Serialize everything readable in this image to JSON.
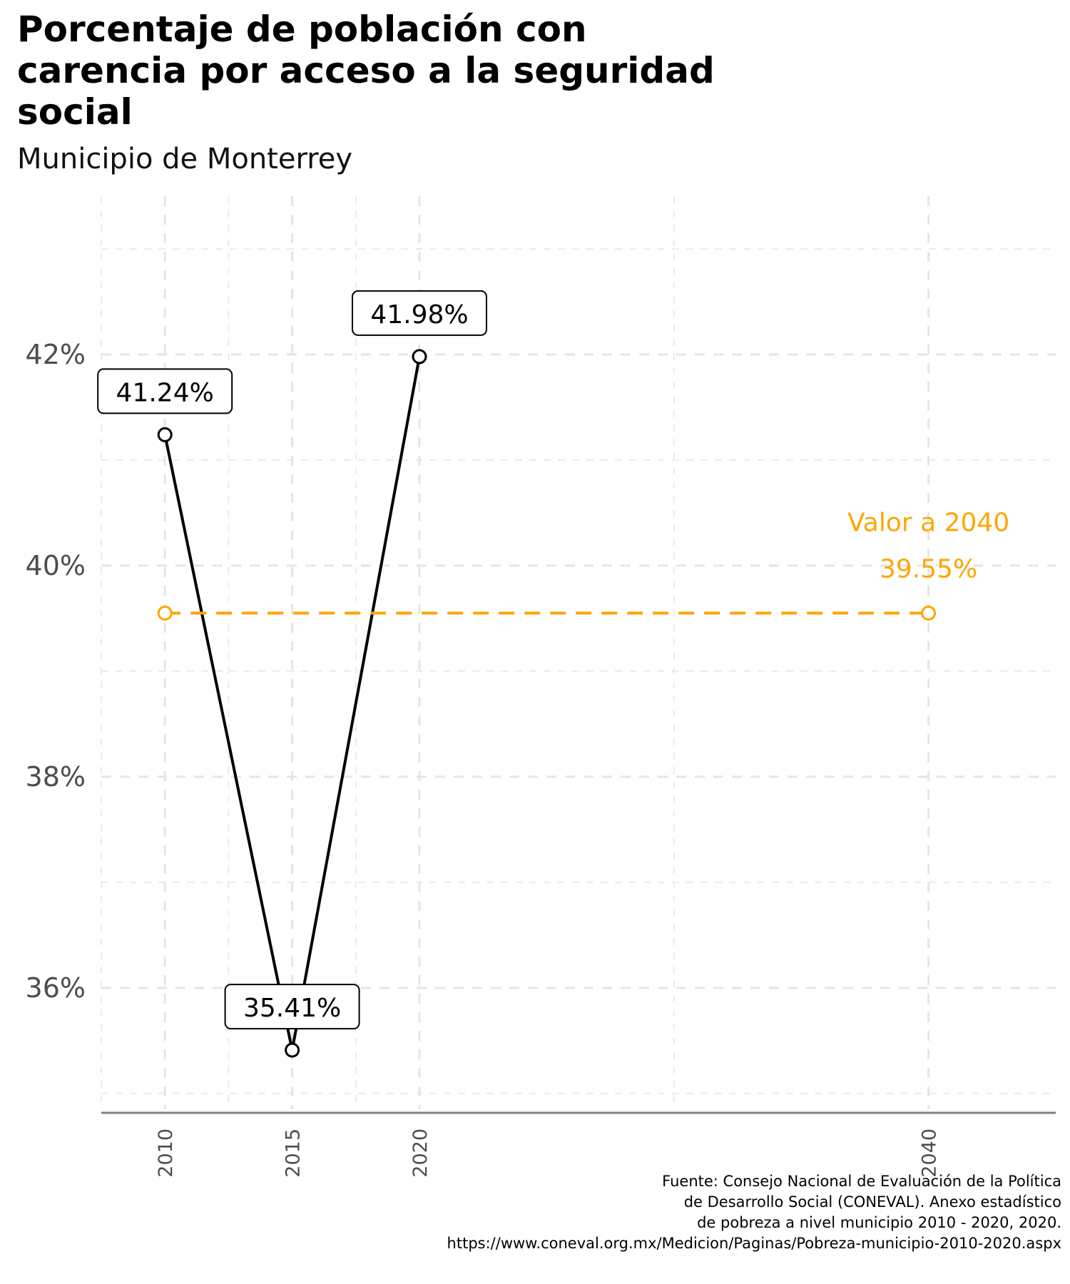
{
  "header": {
    "title": "Porcentaje de población con carencia por acceso a la seguridad social",
    "subtitle": "Municipio de Monterrey"
  },
  "caption": {
    "lines": [
      "Fuente: Consejo Nacional de Evaluación de la Política",
      "de Desarrollo Social (CONEVAL). Anexo estadístico",
      "de pobreza a nivel municipio 2010 - 2020, 2020.",
      "https://www.coneval.org.mx/Medicion/Paginas/Pobreza-municipio-2010-2020.aspx"
    ]
  },
  "chart_data": {
    "type": "line",
    "title": "Porcentaje de población con carencia por acceso a la seguridad social",
    "subtitle": "Municipio de Monterrey",
    "xlabel": "",
    "ylabel": "",
    "xlim": [
      2007.5,
      2045
    ],
    "ylim": [
      34.85,
      43.5
    ],
    "x_ticks": [
      2010,
      2015,
      2020,
      2040
    ],
    "y_ticks": [
      36,
      38,
      40,
      42
    ],
    "y_tick_labels": [
      "36%",
      "38%",
      "40%",
      "42%"
    ],
    "grid": true,
    "series": [
      {
        "name": "",
        "color": "#000000",
        "line_style": "solid",
        "x": [
          2010,
          2015,
          2020
        ],
        "values": [
          41.24,
          35.41,
          41.98
        ],
        "labels": [
          "41.24%",
          "35.41%",
          "41.98%"
        ]
      },
      {
        "name": "",
        "color": "#FFA500",
        "line_style": "dashed",
        "x": [
          2010,
          2040
        ],
        "values": [
          39.55,
          39.55
        ]
      }
    ],
    "annotations": [
      {
        "text": "Valor a 2040",
        "x": 2040,
        "color": "#FFA500"
      },
      {
        "text": "39.55%",
        "x": 2040,
        "color": "#FFA500"
      }
    ]
  }
}
